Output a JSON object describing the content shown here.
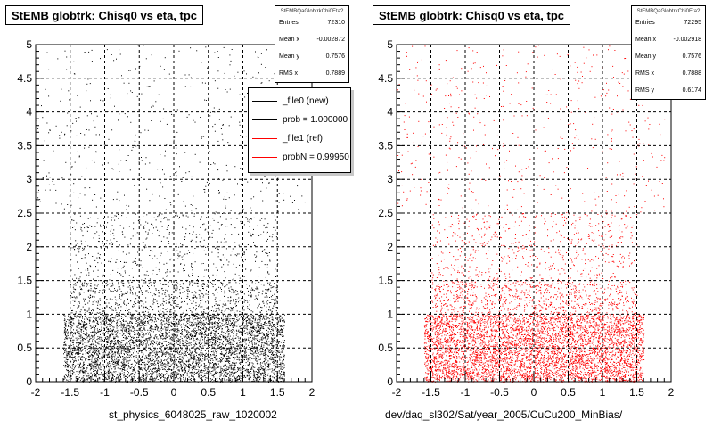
{
  "footer_text": "",
  "chart_data": [
    {
      "type": "scatter",
      "title": "StEMB globtrk: Chisq0 vs eta, tpc",
      "xlabel": "st_physics_6048025_raw_1020002",
      "ylabel": "",
      "xlim": [
        -2,
        2
      ],
      "ylim": [
        0,
        5
      ],
      "x_ticks": [
        "-2",
        "-1.5",
        "-1",
        "-0.5",
        "0",
        "0.5",
        "1",
        "1.5",
        "2"
      ],
      "y_ticks": [
        "0",
        "0.5",
        "1",
        "1.5",
        "2",
        "2.5",
        "3",
        "3.5",
        "4",
        "4.5",
        "5"
      ],
      "grid": true,
      "marker_color": "#000000",
      "stats_box": {
        "name": "StEMBQaGlobtrkChi0Eta?",
        "rows": [
          {
            "label": "Entries",
            "value": "72310"
          },
          {
            "label": "Mean x",
            "value": "-0.002872"
          },
          {
            "label": "Mean y",
            "value": "0.7576"
          },
          {
            "label": "RMS x",
            "value": "0.7889"
          }
        ]
      },
      "legend": {
        "placement": "top-right",
        "entries": [
          {
            "label": "_file0 (new)",
            "color": "#000000"
          },
          {
            "label": "prob = 1.000000",
            "color": "#000000"
          },
          {
            "label": "_file1 (ref)",
            "color": "#ff0000"
          },
          {
            "label": "probN = 0.99950",
            "color": "#ff0000"
          }
        ]
      },
      "density_bands": [
        {
          "y_range": [
            0,
            1
          ],
          "x_range": [
            -1.6,
            1.6
          ],
          "level": 1.0
        },
        {
          "y_range": [
            1,
            1.5
          ],
          "x_range": [
            -1.5,
            1.5
          ],
          "level": 0.35
        },
        {
          "y_range": [
            1.5,
            2.5
          ],
          "x_range": [
            -1.5,
            1.5
          ],
          "level": 0.12
        },
        {
          "y_range": [
            2.5,
            5
          ],
          "x_range": [
            -2,
            1.9
          ],
          "level": 0.03
        }
      ]
    },
    {
      "type": "scatter",
      "title": "StEMB globtrk: Chisq0 vs eta, tpc",
      "xlabel": "dev/daq_sl302/Sat/year_2005/CuCu200_MinBias/",
      "ylabel": "",
      "xlim": [
        -2,
        2
      ],
      "ylim": [
        0,
        5
      ],
      "x_ticks": [
        "-2",
        "-1.5",
        "-1",
        "-0.5",
        "0",
        "0.5",
        "1",
        "1.5",
        "2"
      ],
      "y_ticks": [
        "0",
        "0.5",
        "1",
        "1.5",
        "2",
        "2.5",
        "3",
        "3.5",
        "4",
        "4.5",
        "5"
      ],
      "grid": true,
      "marker_color": "#ff0000",
      "stats_box": {
        "name": "StEMBQaGlobtrkChi0Eta?",
        "rows": [
          {
            "label": "Entries",
            "value": "72295"
          },
          {
            "label": "Mean x",
            "value": "-0.002918"
          },
          {
            "label": "Mean y",
            "value": "0.7576"
          },
          {
            "label": "RMS x",
            "value": "0.7888"
          },
          {
            "label": "RMS y",
            "value": "0.6174"
          }
        ]
      },
      "density_bands": [
        {
          "y_range": [
            0,
            1
          ],
          "x_range": [
            -1.6,
            1.6
          ],
          "level": 1.0
        },
        {
          "y_range": [
            1,
            1.5
          ],
          "x_range": [
            -1.5,
            1.5
          ],
          "level": 0.35
        },
        {
          "y_range": [
            1.5,
            2.5
          ],
          "x_range": [
            -1.5,
            1.5
          ],
          "level": 0.12
        },
        {
          "y_range": [
            2.5,
            5
          ],
          "x_range": [
            -2,
            1.9
          ],
          "level": 0.03
        }
      ]
    }
  ]
}
